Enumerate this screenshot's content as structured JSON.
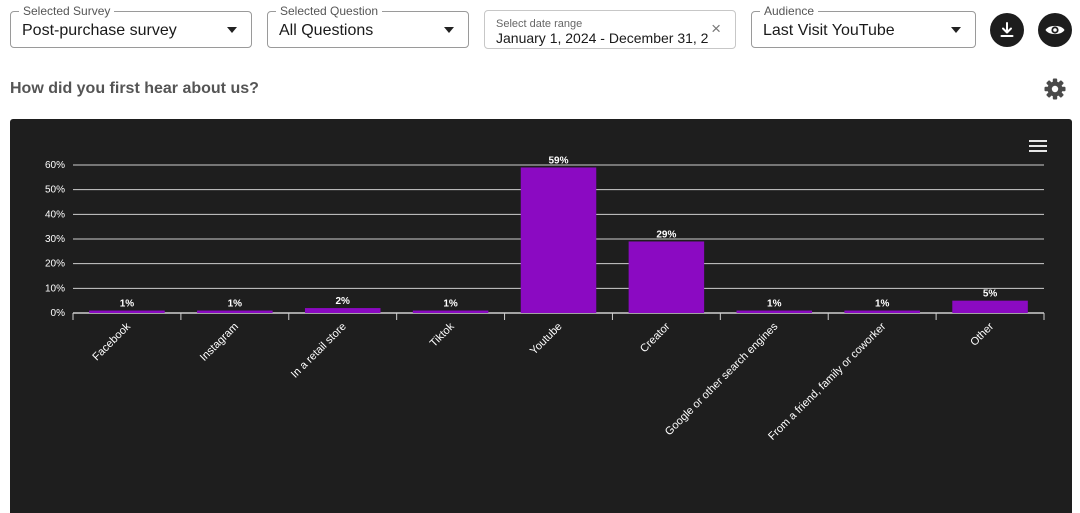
{
  "filters": {
    "survey": {
      "legend": "Selected Survey",
      "value": "Post-purchase survey"
    },
    "question": {
      "legend": "Selected Question",
      "value": "All Questions"
    },
    "date_range": {
      "label": "Select date range",
      "value": "January 1, 2024 - December 31, 2"
    },
    "audience": {
      "legend": "Audience",
      "value": "Last Visit YouTube"
    }
  },
  "icons": {
    "download": "download-icon",
    "view": "eye-icon",
    "settings": "gear-icon",
    "chart_menu": "hamburger-menu-icon",
    "clear": "close-icon"
  },
  "question_title": "How did you first hear about us?",
  "colors": {
    "bar": "#8b0ac2",
    "panel": "#1e1e1e",
    "grid": "#cfcfcf",
    "text": "#ffffff"
  },
  "chart_data": {
    "type": "bar",
    "categories": [
      "Facebook",
      "Instagram",
      "In a retail store",
      "Tiktok",
      "Youtube",
      "Creator",
      "Google or other search engines",
      "From a friend, family or coworker",
      "Other"
    ],
    "values": [
      1,
      1,
      2,
      1,
      59,
      29,
      1,
      1,
      5
    ],
    "data_labels": [
      "1%",
      "1%",
      "2%",
      "1%",
      "59%",
      "29%",
      "1%",
      "1%",
      "5%"
    ],
    "y_ticks": [
      "0%",
      "10%",
      "20%",
      "30%",
      "40%",
      "50%",
      "60%"
    ],
    "ylim": [
      0,
      60
    ],
    "grid": true,
    "title": "",
    "xlabel": "",
    "ylabel": ""
  }
}
